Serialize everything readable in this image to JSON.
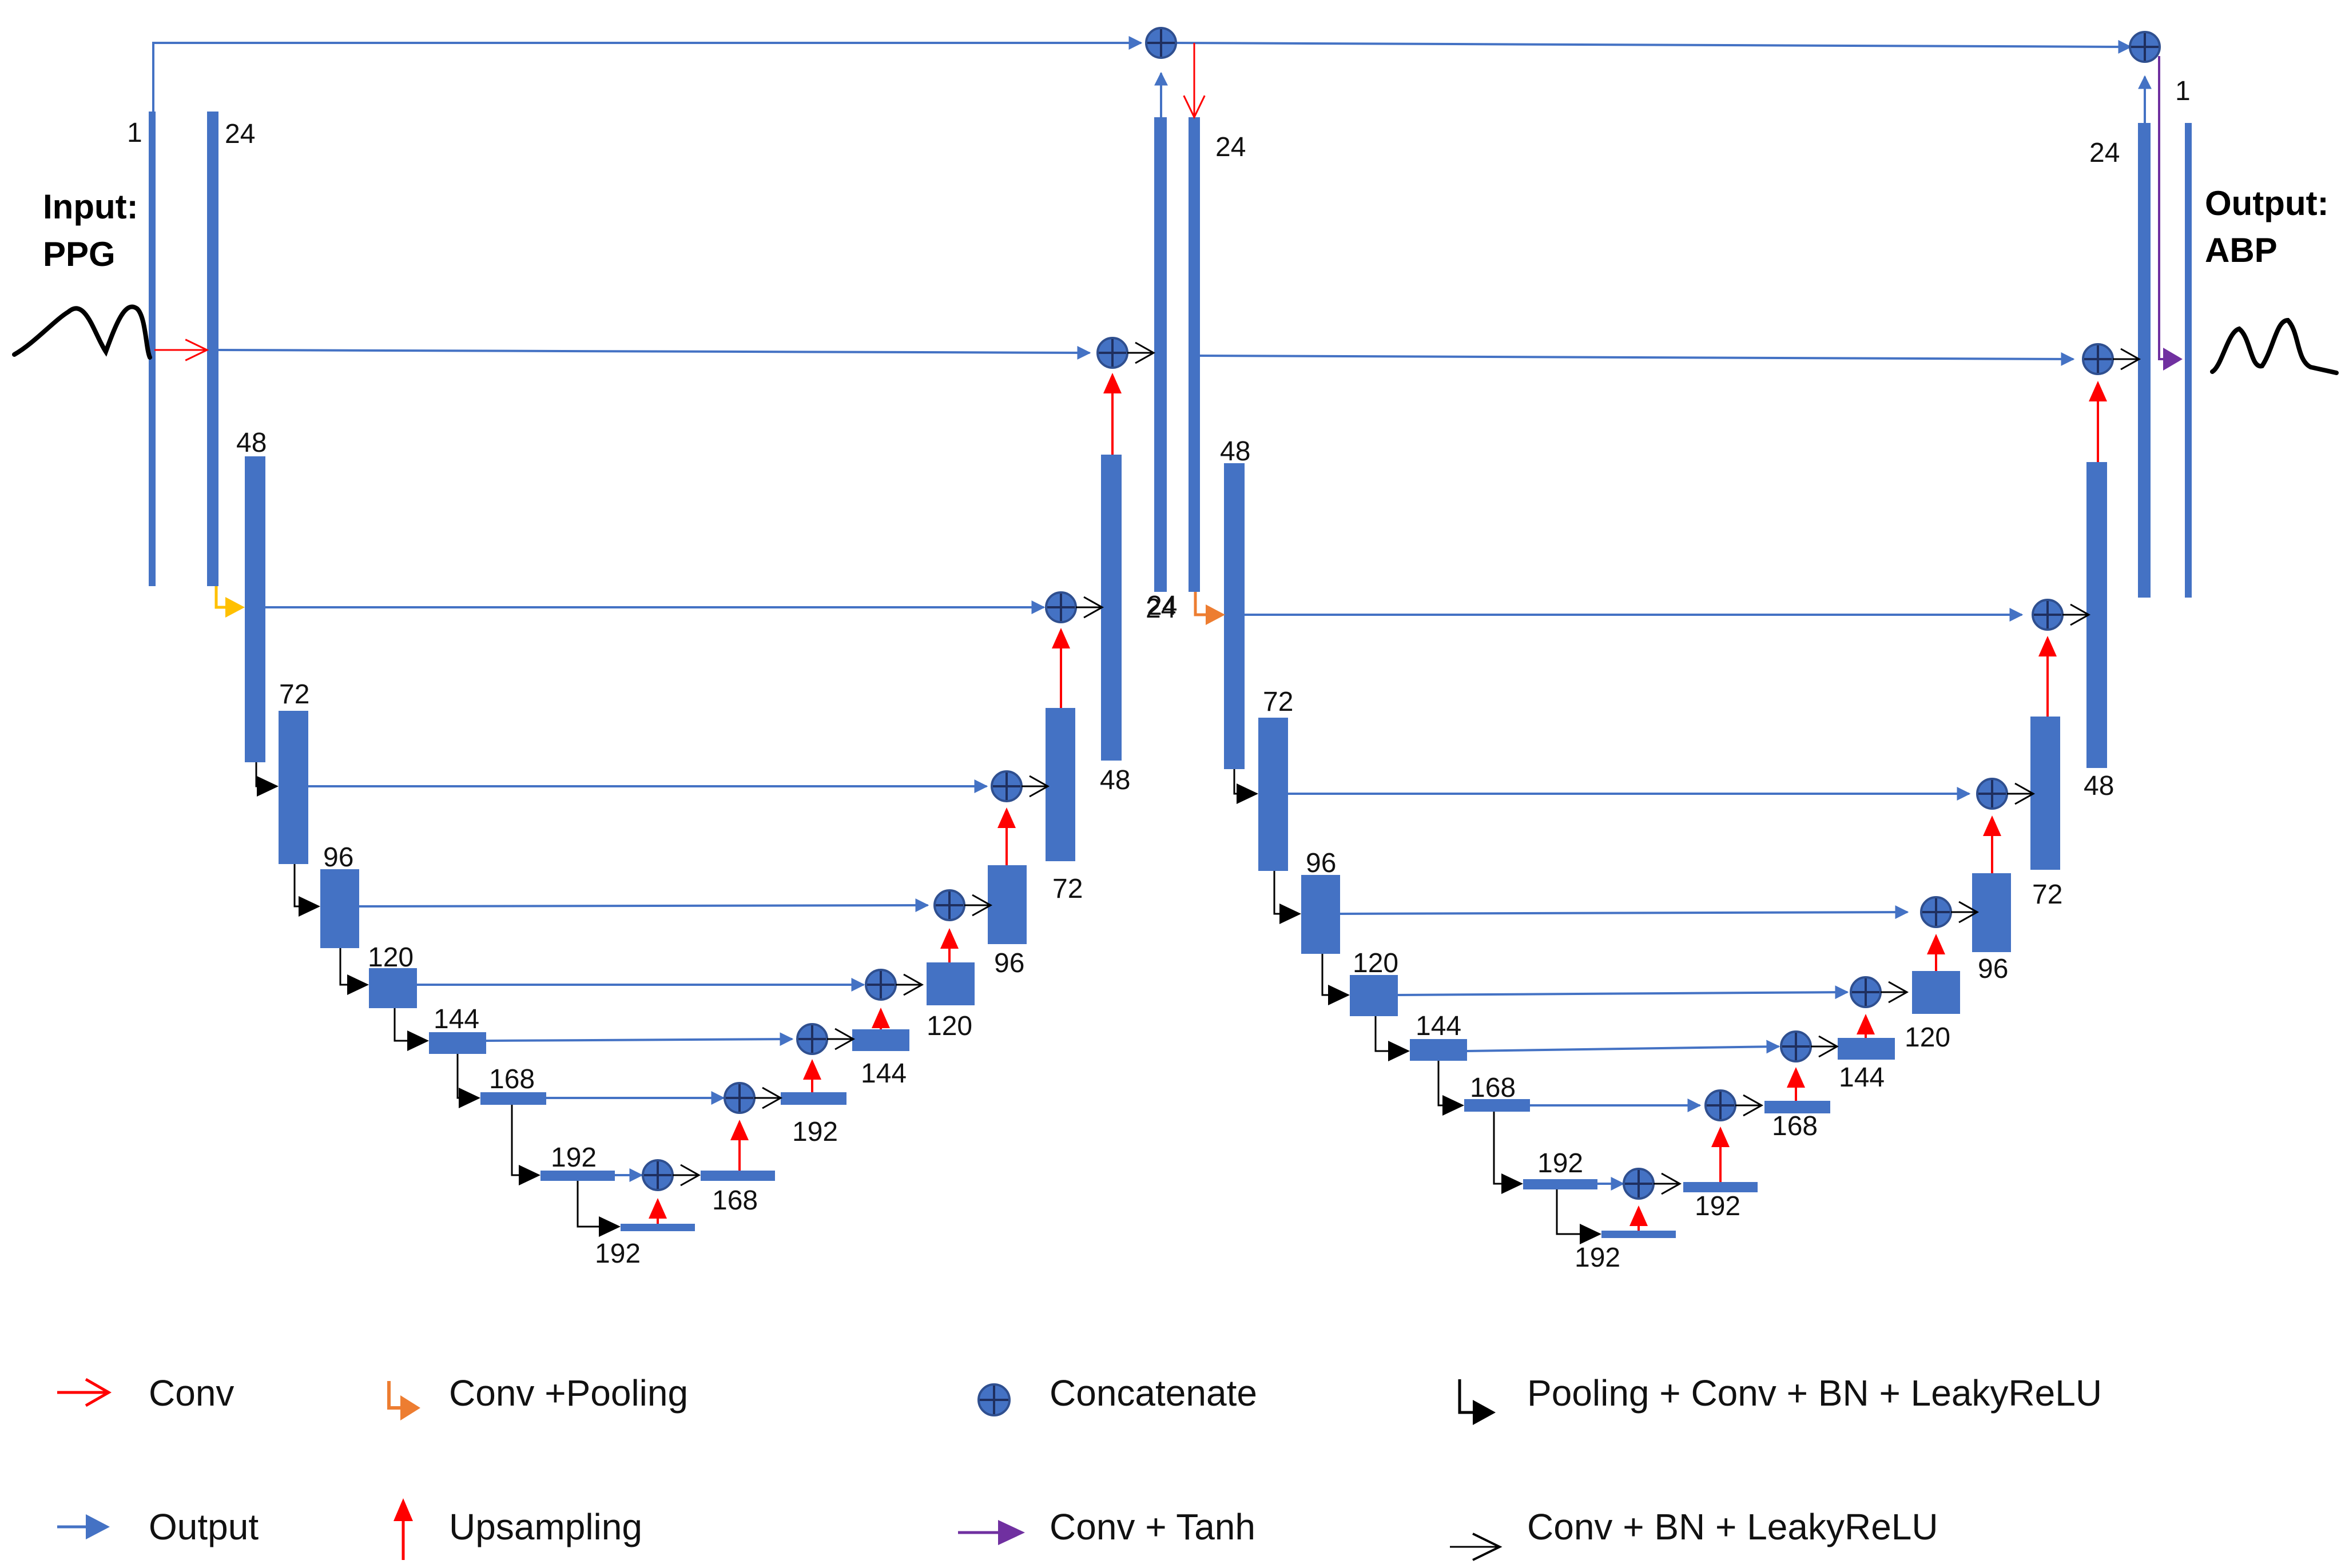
{
  "input": {
    "line1": "Input:",
    "line2": "PPG"
  },
  "output": {
    "line1": "Output:",
    "line2": "ABP"
  },
  "net1": {
    "input_channels": "1",
    "enc": [
      "24",
      "48",
      "72",
      "96",
      "120",
      "144",
      "168",
      "192"
    ],
    "bottleneck": "192",
    "dec": [
      "168",
      "192",
      "144",
      "120",
      "96",
      "72",
      "48",
      "24"
    ]
  },
  "net2": {
    "enc_top": "24",
    "enc": [
      "48",
      "72",
      "96",
      "120",
      "144",
      "168",
      "192"
    ],
    "bottleneck": "192",
    "dec": [
      "192",
      "168",
      "144",
      "120",
      "96",
      "72",
      "48"
    ],
    "out_conv": "24",
    "output_channels": "1"
  },
  "legend": {
    "conv": "Conv",
    "conv_pooling": "Conv +Pooling",
    "concatenate": "Concatenate",
    "pooling_block": "Pooling + Conv + BN + LeakyReLU",
    "output": "Output",
    "upsampling": "Upsampling",
    "conv_tanh": "Conv + Tanh",
    "conv_bn_block": "Conv + BN + LeakyReLU"
  },
  "colors": {
    "block": "#4472C4",
    "conv_arrow": "#FF0000",
    "pool_arrow_1": "#FFC000",
    "pool_arrow_2": "#ED7D31",
    "tanh_arrow": "#7030A0",
    "concat_fill": "#4472C4",
    "concat_stroke": "#2F4F8F"
  }
}
